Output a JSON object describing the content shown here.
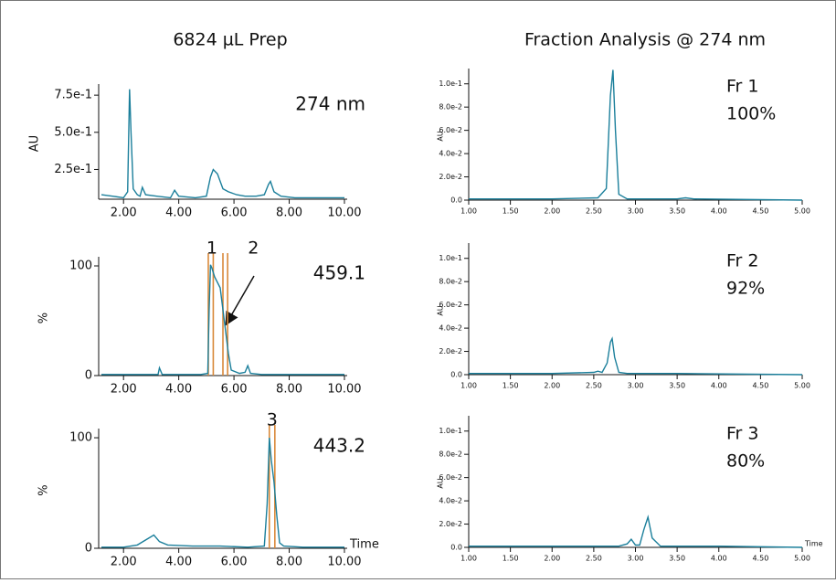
{
  "column_titles": [
    "6824 µL Prep",
    "Fraction Analysis @ 274 nm"
  ],
  "chart_data": [
    {
      "type": "line",
      "title": "274 nm",
      "ylabel": "AU",
      "color": "#1b7f9b",
      "xlim": [
        1.1,
        10.1
      ],
      "ylim": [
        0.05,
        0.8
      ],
      "xticks": [
        {
          "value": 2,
          "label": "2.00"
        },
        {
          "value": 4,
          "label": "4.00"
        },
        {
          "value": 6,
          "label": "6.00"
        },
        {
          "value": 8,
          "label": "8.00"
        },
        {
          "value": 10,
          "label": "10.00"
        }
      ],
      "yticks": [
        {
          "value": 0.25,
          "label": "2.5e-1"
        },
        {
          "value": 0.5,
          "label": "5.0e-1"
        },
        {
          "value": 0.75,
          "label": "7.5e-1"
        }
      ],
      "x": [
        1.2,
        1.6,
        2.0,
        2.15,
        2.22,
        2.27,
        2.35,
        2.5,
        2.6,
        2.68,
        2.8,
        3.2,
        3.7,
        3.85,
        4.0,
        4.6,
        5.0,
        5.15,
        5.25,
        5.4,
        5.6,
        5.8,
        6.1,
        6.4,
        6.8,
        7.1,
        7.25,
        7.32,
        7.45,
        7.7,
        8.2,
        9.0,
        10.0
      ],
      "values": [
        0.08,
        0.07,
        0.06,
        0.1,
        0.79,
        0.5,
        0.12,
        0.08,
        0.07,
        0.13,
        0.08,
        0.07,
        0.06,
        0.11,
        0.07,
        0.06,
        0.07,
        0.2,
        0.25,
        0.22,
        0.12,
        0.1,
        0.08,
        0.07,
        0.07,
        0.08,
        0.15,
        0.17,
        0.1,
        0.07,
        0.06,
        0.06,
        0.06
      ]
    },
    {
      "type": "line",
      "title": "459.1",
      "ylabel": "%",
      "color": "#1b7f9b",
      "marker_color": "#d9893a",
      "xlim": [
        1.1,
        10.1
      ],
      "ylim": [
        0,
        105
      ],
      "xticks": [
        {
          "value": 2,
          "label": "2.00"
        },
        {
          "value": 4,
          "label": "4.00"
        },
        {
          "value": 6,
          "label": "6.00"
        },
        {
          "value": 8,
          "label": "8.00"
        },
        {
          "value": 10,
          "label": "10.00"
        }
      ],
      "yticks": [
        0,
        100
      ],
      "vlines": [
        5.07,
        5.25,
        5.6,
        5.77
      ],
      "annotations": [
        {
          "text": "1",
          "x": 5.2
        },
        {
          "text": "2",
          "x": 6.7
        }
      ],
      "x": [
        1.2,
        3.0,
        3.25,
        3.3,
        3.4,
        4.8,
        5.05,
        5.1,
        5.15,
        5.2,
        5.3,
        5.5,
        5.6,
        5.7,
        5.8,
        5.9,
        6.2,
        6.4,
        6.5,
        6.6,
        7.0,
        10.0
      ],
      "values": [
        1,
        1,
        1,
        7,
        1,
        1,
        2,
        60,
        101,
        98,
        90,
        80,
        60,
        40,
        20,
        5,
        2,
        3,
        9,
        2,
        1,
        1
      ]
    },
    {
      "type": "line",
      "title": "443.2",
      "ylabel": "%",
      "xlabel": "Time",
      "color": "#1b7f9b",
      "marker_color": "#d9893a",
      "xlim": [
        1.1,
        10.1
      ],
      "ylim": [
        0,
        105
      ],
      "xticks": [
        {
          "value": 2,
          "label": "2.00"
        },
        {
          "value": 4,
          "label": "4.00"
        },
        {
          "value": 6,
          "label": "6.00"
        },
        {
          "value": 8,
          "label": "8.00"
        },
        {
          "value": 10,
          "label": "10.00"
        }
      ],
      "yticks": [
        0,
        100
      ],
      "vlines": [
        7.28,
        7.48
      ],
      "annotations": [
        {
          "text": "3",
          "x": 7.38
        }
      ],
      "x": [
        1.2,
        2.0,
        2.5,
        2.9,
        3.1,
        3.3,
        3.6,
        4.5,
        5.5,
        6.5,
        7.1,
        7.2,
        7.28,
        7.35,
        7.45,
        7.55,
        7.65,
        7.8,
        8.5,
        10.0
      ],
      "values": [
        1,
        1,
        3,
        9,
        12,
        6,
        3,
        2,
        2,
        1,
        2,
        40,
        100,
        80,
        60,
        30,
        5,
        2,
        1,
        1
      ]
    },
    {
      "type": "line",
      "title": "Fr 1",
      "subtitle": "100%",
      "ylabel": "AU",
      "color": "#1b7f9b",
      "xlim": [
        1.0,
        5.0
      ],
      "ylim": [
        0,
        0.11
      ],
      "xticks": [
        {
          "value": 1,
          "label": "1.00"
        },
        {
          "value": 1.5,
          "label": "1.50"
        },
        {
          "value": 2,
          "label": "2.00"
        },
        {
          "value": 2.5,
          "label": "2.50"
        },
        {
          "value": 3,
          "label": "3.00"
        },
        {
          "value": 3.5,
          "label": "3.50"
        },
        {
          "value": 4,
          "label": "4.00"
        },
        {
          "value": 4.5,
          "label": "4.50"
        },
        {
          "value": 5,
          "label": "5.00"
        }
      ],
      "yticks": [
        {
          "value": 0,
          "label": "0.0"
        },
        {
          "value": 0.02,
          "label": "2.0e-2"
        },
        {
          "value": 0.04,
          "label": "4.0e-2"
        },
        {
          "value": 0.06,
          "label": "6.0e-2"
        },
        {
          "value": 0.08,
          "label": "8.0e-2"
        },
        {
          "value": 0.1,
          "label": "1.0e-1"
        }
      ],
      "x": [
        1.0,
        2.0,
        2.55,
        2.65,
        2.7,
        2.73,
        2.76,
        2.8,
        2.9,
        3.5,
        3.6,
        3.7,
        5.0
      ],
      "values": [
        0.001,
        0.001,
        0.002,
        0.01,
        0.09,
        0.112,
        0.06,
        0.005,
        0.001,
        0.001,
        0.002,
        0.001,
        0.0
      ]
    },
    {
      "type": "line",
      "title": "Fr 2",
      "subtitle": "92%",
      "ylabel": "AU",
      "color": "#1b7f9b",
      "xlim": [
        1.0,
        5.0
      ],
      "ylim": [
        0,
        0.11
      ],
      "xticks": [
        {
          "value": 1,
          "label": "1.00"
        },
        {
          "value": 1.5,
          "label": "1.50"
        },
        {
          "value": 2,
          "label": "2.00"
        },
        {
          "value": 2.5,
          "label": "2.50"
        },
        {
          "value": 3,
          "label": "3.00"
        },
        {
          "value": 3.5,
          "label": "3.50"
        },
        {
          "value": 4,
          "label": "4.00"
        },
        {
          "value": 4.5,
          "label": "4.50"
        },
        {
          "value": 5,
          "label": "5.00"
        }
      ],
      "yticks": [
        {
          "value": 0,
          "label": "0.0"
        },
        {
          "value": 0.02,
          "label": "2.0e-2"
        },
        {
          "value": 0.04,
          "label": "4.0e-2"
        },
        {
          "value": 0.06,
          "label": "6.0e-2"
        },
        {
          "value": 0.08,
          "label": "8.0e-2"
        },
        {
          "value": 0.1,
          "label": "1.0e-1"
        }
      ],
      "x": [
        1.0,
        2.0,
        2.5,
        2.55,
        2.6,
        2.66,
        2.7,
        2.72,
        2.75,
        2.8,
        2.9,
        3.5,
        5.0
      ],
      "values": [
        0.001,
        0.001,
        0.002,
        0.003,
        0.002,
        0.01,
        0.028,
        0.031,
        0.015,
        0.002,
        0.001,
        0.001,
        0.0
      ]
    },
    {
      "type": "line",
      "title": "Fr 3",
      "subtitle": "80%",
      "ylabel": "AU",
      "xlabel": "Time",
      "color": "#1b7f9b",
      "xlim": [
        1.0,
        5.0
      ],
      "ylim": [
        0,
        0.11
      ],
      "xticks": [
        {
          "value": 1,
          "label": "1.00"
        },
        {
          "value": 1.5,
          "label": "1.50"
        },
        {
          "value": 2,
          "label": "2.00"
        },
        {
          "value": 2.5,
          "label": "2.50"
        },
        {
          "value": 3,
          "label": "3.00"
        },
        {
          "value": 3.5,
          "label": "3.50"
        },
        {
          "value": 4,
          "label": "4.00"
        },
        {
          "value": 4.5,
          "label": "4.50"
        },
        {
          "value": 5,
          "label": "5.00"
        }
      ],
      "yticks": [
        {
          "value": 0,
          "label": "0.0"
        },
        {
          "value": 0.02,
          "label": "2.0e-2"
        },
        {
          "value": 0.04,
          "label": "4.0e-2"
        },
        {
          "value": 0.06,
          "label": "6.0e-2"
        },
        {
          "value": 0.08,
          "label": "8.0e-2"
        },
        {
          "value": 0.1,
          "label": "1.0e-1"
        }
      ],
      "x": [
        1.0,
        2.0,
        2.8,
        2.9,
        2.95,
        3.0,
        3.05,
        3.1,
        3.15,
        3.2,
        3.3,
        4.0,
        5.0
      ],
      "values": [
        0.001,
        0.001,
        0.001,
        0.003,
        0.007,
        0.002,
        0.002,
        0.015,
        0.026,
        0.008,
        0.001,
        0.001,
        0.0
      ]
    }
  ]
}
